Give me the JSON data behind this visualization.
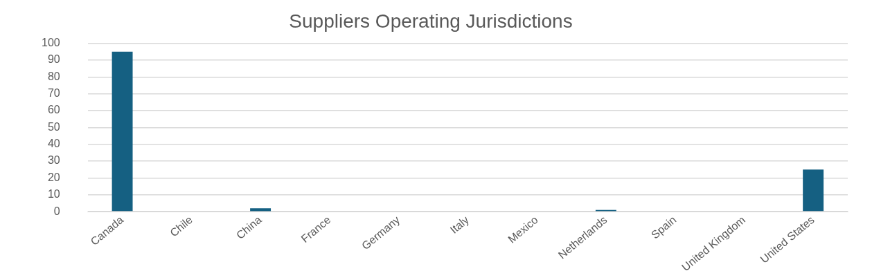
{
  "chart_data": {
    "type": "bar",
    "title": "Suppliers Operating Jurisdictions",
    "categories": [
      "Canada",
      "Chile",
      "China",
      "France",
      "Germany",
      "Italy",
      "Mexico",
      "Netherlands",
      "Spain",
      "United Kingdom",
      "United States"
    ],
    "values": [
      95,
      0,
      2,
      0,
      0,
      0,
      0,
      1,
      0,
      0,
      25
    ],
    "color": "#156082",
    "ylim": [
      0,
      100
    ],
    "yticks": [
      0,
      10,
      20,
      30,
      40,
      50,
      60,
      70,
      80,
      90,
      100
    ],
    "grid": "y",
    "legend": false
  }
}
